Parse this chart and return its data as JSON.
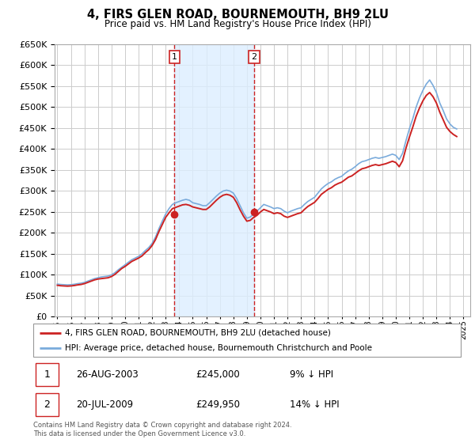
{
  "title": "4, FIRS GLEN ROAD, BOURNEMOUTH, BH9 2LU",
  "subtitle": "Price paid vs. HM Land Registry's House Price Index (HPI)",
  "ylim": [
    0,
    650000
  ],
  "xlim_start": 1994.8,
  "xlim_end": 2025.5,
  "transaction1": {
    "date": "26-AUG-2003",
    "year": 2003.65,
    "price": 245000,
    "label": "1",
    "pct": "9% ↓ HPI"
  },
  "transaction2": {
    "date": "20-JUL-2009",
    "year": 2009.54,
    "price": 249950,
    "label": "2",
    "pct": "14% ↓ HPI"
  },
  "hpi_line_color": "#7aabdc",
  "price_line_color": "#cc2222",
  "vline_color": "#cc2222",
  "shade_color": "#ddeeff",
  "grid_color": "#cccccc",
  "background_color": "#ffffff",
  "legend_label_red": "4, FIRS GLEN ROAD, BOURNEMOUTH, BH9 2LU (detached house)",
  "legend_label_blue": "HPI: Average price, detached house, Bournemouth Christchurch and Poole",
  "footnote": "Contains HM Land Registry data © Crown copyright and database right 2024.\nThis data is licensed under the Open Government Licence v3.0.",
  "hpi_data_x": [
    1995.0,
    1995.25,
    1995.5,
    1995.75,
    1996.0,
    1996.25,
    1996.5,
    1996.75,
    1997.0,
    1997.25,
    1997.5,
    1997.75,
    1998.0,
    1998.25,
    1998.5,
    1998.75,
    1999.0,
    1999.25,
    1999.5,
    1999.75,
    2000.0,
    2000.25,
    2000.5,
    2000.75,
    2001.0,
    2001.25,
    2001.5,
    2001.75,
    2002.0,
    2002.25,
    2002.5,
    2002.75,
    2003.0,
    2003.25,
    2003.5,
    2003.75,
    2004.0,
    2004.25,
    2004.5,
    2004.75,
    2005.0,
    2005.25,
    2005.5,
    2005.75,
    2006.0,
    2006.25,
    2006.5,
    2006.75,
    2007.0,
    2007.25,
    2007.5,
    2007.75,
    2008.0,
    2008.25,
    2008.5,
    2008.75,
    2009.0,
    2009.25,
    2009.5,
    2009.75,
    2010.0,
    2010.25,
    2010.5,
    2010.75,
    2011.0,
    2011.25,
    2011.5,
    2011.75,
    2012.0,
    2012.25,
    2012.5,
    2012.75,
    2013.0,
    2013.25,
    2013.5,
    2013.75,
    2014.0,
    2014.25,
    2014.5,
    2014.75,
    2015.0,
    2015.25,
    2015.5,
    2015.75,
    2016.0,
    2016.25,
    2016.5,
    2016.75,
    2017.0,
    2017.25,
    2017.5,
    2017.75,
    2018.0,
    2018.25,
    2018.5,
    2018.75,
    2019.0,
    2019.25,
    2019.5,
    2019.75,
    2020.0,
    2020.25,
    2020.5,
    2020.75,
    2021.0,
    2021.25,
    2021.5,
    2021.75,
    2022.0,
    2022.25,
    2022.5,
    2022.75,
    2023.0,
    2023.25,
    2023.5,
    2023.75,
    2024.0,
    2024.25,
    2024.5
  ],
  "hpi_data_y": [
    78000,
    77000,
    76500,
    76000,
    76500,
    77500,
    79000,
    80000,
    82000,
    85000,
    88000,
    91000,
    93000,
    95000,
    96000,
    97000,
    100000,
    105000,
    112000,
    118000,
    124000,
    130000,
    136000,
    140000,
    144000,
    150000,
    158000,
    165000,
    175000,
    190000,
    210000,
    228000,
    245000,
    258000,
    268000,
    272000,
    275000,
    278000,
    280000,
    278000,
    272000,
    270000,
    268000,
    265000,
    265000,
    272000,
    280000,
    288000,
    295000,
    300000,
    302000,
    300000,
    295000,
    282000,
    265000,
    248000,
    235000,
    238000,
    245000,
    252000,
    260000,
    268000,
    265000,
    262000,
    258000,
    260000,
    258000,
    252000,
    248000,
    252000,
    255000,
    258000,
    260000,
    268000,
    275000,
    280000,
    285000,
    295000,
    305000,
    312000,
    318000,
    322000,
    328000,
    332000,
    335000,
    342000,
    348000,
    352000,
    358000,
    365000,
    370000,
    372000,
    375000,
    378000,
    380000,
    378000,
    380000,
    382000,
    385000,
    388000,
    385000,
    375000,
    390000,
    420000,
    448000,
    472000,
    500000,
    522000,
    540000,
    555000,
    565000,
    552000,
    535000,
    510000,
    492000,
    472000,
    460000,
    452000,
    448000
  ],
  "price_data_x": [
    1995.0,
    1995.25,
    1995.5,
    1995.75,
    1996.0,
    1996.25,
    1996.5,
    1996.75,
    1997.0,
    1997.25,
    1997.5,
    1997.75,
    1998.0,
    1998.25,
    1998.5,
    1998.75,
    1999.0,
    1999.25,
    1999.5,
    1999.75,
    2000.0,
    2000.25,
    2000.5,
    2000.75,
    2001.0,
    2001.25,
    2001.5,
    2001.75,
    2002.0,
    2002.25,
    2002.5,
    2002.75,
    2003.0,
    2003.25,
    2003.5,
    2003.75,
    2004.0,
    2004.25,
    2004.5,
    2004.75,
    2005.0,
    2005.25,
    2005.5,
    2005.75,
    2006.0,
    2006.25,
    2006.5,
    2006.75,
    2007.0,
    2007.25,
    2007.5,
    2007.75,
    2008.0,
    2008.25,
    2008.5,
    2008.75,
    2009.0,
    2009.25,
    2009.5,
    2009.75,
    2010.0,
    2010.25,
    2010.5,
    2010.75,
    2011.0,
    2011.25,
    2011.5,
    2011.75,
    2012.0,
    2012.25,
    2012.5,
    2012.75,
    2013.0,
    2013.25,
    2013.5,
    2013.75,
    2014.0,
    2014.25,
    2014.5,
    2014.75,
    2015.0,
    2015.25,
    2015.5,
    2015.75,
    2016.0,
    2016.25,
    2016.5,
    2016.75,
    2017.0,
    2017.25,
    2017.5,
    2017.75,
    2018.0,
    2018.25,
    2018.5,
    2018.75,
    2019.0,
    2019.25,
    2019.5,
    2019.75,
    2020.0,
    2020.25,
    2020.5,
    2020.75,
    2021.0,
    2021.25,
    2021.5,
    2021.75,
    2022.0,
    2022.25,
    2022.5,
    2022.75,
    2023.0,
    2023.25,
    2023.5,
    2023.75,
    2024.0,
    2024.25,
    2024.5
  ],
  "price_data_y": [
    75000,
    74000,
    73500,
    73000,
    73500,
    74500,
    76000,
    77000,
    79000,
    82000,
    85000,
    88000,
    90000,
    91000,
    92000,
    93000,
    96000,
    101000,
    108000,
    115000,
    120000,
    126000,
    132000,
    136000,
    140000,
    145000,
    153000,
    160000,
    170000,
    184000,
    203000,
    220000,
    237000,
    248000,
    258000,
    261000,
    264000,
    267000,
    268000,
    266000,
    262000,
    260000,
    258000,
    256000,
    256000,
    262000,
    270000,
    278000,
    285000,
    290000,
    292000,
    290000,
    285000,
    272000,
    255000,
    240000,
    228000,
    230000,
    237000,
    242000,
    250000,
    256000,
    253000,
    250000,
    246000,
    248000,
    246000,
    240000,
    237000,
    240000,
    243000,
    246000,
    248000,
    256000,
    263000,
    268000,
    273000,
    282000,
    292000,
    298000,
    304000,
    308000,
    314000,
    318000,
    321000,
    327000,
    333000,
    336000,
    342000,
    348000,
    353000,
    355000,
    358000,
    361000,
    363000,
    361000,
    363000,
    365000,
    368000,
    371000,
    368000,
    358000,
    372000,
    402000,
    428000,
    452000,
    478000,
    498000,
    515000,
    528000,
    535000,
    525000,
    510000,
    488000,
    470000,
    452000,
    442000,
    435000,
    430000
  ]
}
